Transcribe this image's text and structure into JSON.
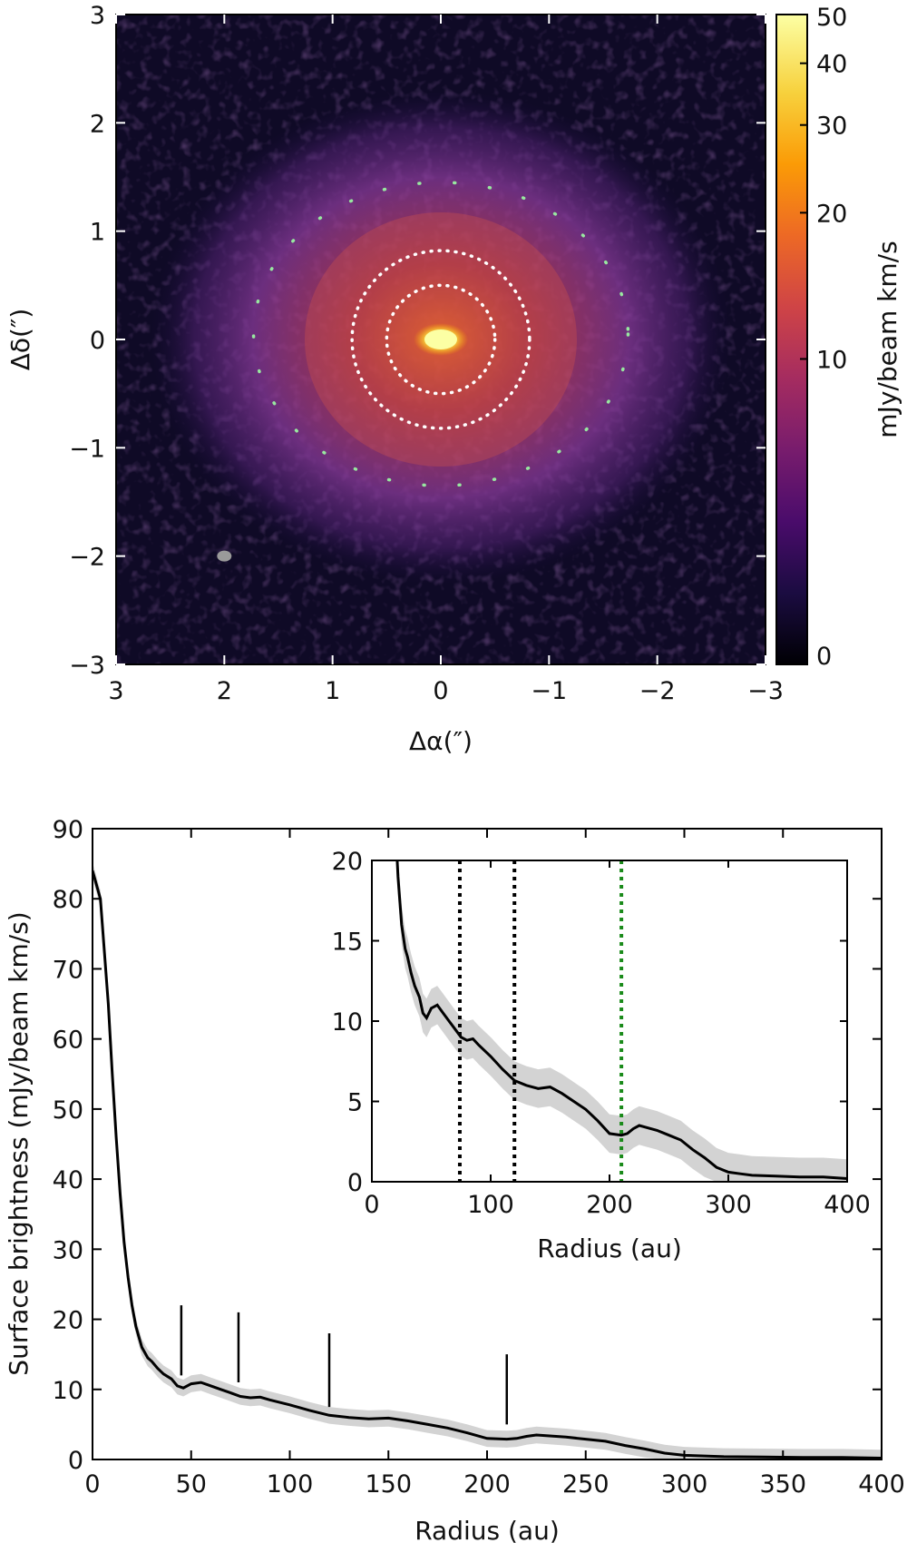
{
  "chart_data": [
    {
      "type": "heatmap",
      "xlabel": "Δα(″)",
      "ylabel": "Δδ(″)",
      "xlim": [
        3,
        -3
      ],
      "ylim": [
        -3,
        3
      ],
      "xticks": [
        "3",
        "2",
        "1",
        "0",
        "−1",
        "−2",
        "−3"
      ],
      "yticks": [
        "−3",
        "−2",
        "−1",
        "0",
        "1",
        "2",
        "3"
      ],
      "colorbar": {
        "label": "mJy/beam km/s",
        "range": [
          0,
          50
        ],
        "ticks": [
          "0",
          "10",
          "20",
          "30",
          "40",
          "50"
        ],
        "colormap": [
          "#000004",
          "#1b0c41",
          "#4a0c6b",
          "#781c6d",
          "#a52c60",
          "#cf4446",
          "#ed6925",
          "#fb9b06",
          "#f7d13d",
          "#fcffa4"
        ]
      },
      "features": {
        "central_peak": {
          "x": 0.0,
          "y": 0.0
        },
        "white_dotted_ellipses": [
          {
            "ra_semi": 0.5,
            "dec_semi": 0.5,
            "center_x": 0.0,
            "center_y": 0.0
          },
          {
            "ra_semi": 0.82,
            "dec_semi": 0.82,
            "center_x": 0.0,
            "center_y": 0.0
          }
        ],
        "green_dotted_ellipse": {
          "ra_semi": 1.73,
          "dec_semi": 1.4,
          "center_x": 0.0,
          "center_y": 0.05
        },
        "beam": {
          "x": 2.0,
          "y": -2.0
        }
      }
    },
    {
      "type": "line",
      "xlabel": "Radius (au)",
      "ylabel": "Surface brightness (mJy/beam km/s)",
      "xlim": [
        0,
        400
      ],
      "ylim": [
        0,
        90
      ],
      "xticks": [
        "0",
        "50",
        "100",
        "150",
        "200",
        "250",
        "300",
        "350",
        "400"
      ],
      "yticks": [
        "0",
        "10",
        "20",
        "30",
        "40",
        "50",
        "60",
        "70",
        "80",
        "90"
      ],
      "series": [
        {
          "x": [
            0,
            4,
            8,
            10,
            12,
            14,
            16,
            18,
            20,
            22,
            25,
            28,
            30,
            33,
            36,
            40,
            43,
            46,
            50,
            55,
            60,
            65,
            70,
            75,
            80,
            85,
            90,
            100,
            110,
            120,
            130,
            140,
            150,
            160,
            170,
            180,
            190,
            200,
            210,
            215,
            220,
            225,
            230,
            240,
            250,
            260,
            270,
            280,
            290,
            300,
            310,
            320,
            340,
            360,
            380,
            400
          ],
          "y": [
            84,
            80,
            65,
            55,
            46,
            38,
            31,
            26,
            22,
            19,
            16,
            14.5,
            14,
            13,
            12.2,
            11.5,
            10.5,
            10.2,
            10.8,
            11,
            10.5,
            10,
            9.5,
            9,
            8.8,
            8.9,
            8.5,
            7.8,
            7,
            6.3,
            6,
            5.8,
            5.9,
            5.5,
            5,
            4.5,
            3.8,
            3,
            2.9,
            3,
            3.3,
            3.5,
            3.4,
            3.2,
            2.9,
            2.6,
            2,
            1.5,
            0.9,
            0.6,
            0.5,
            0.4,
            0.35,
            0.3,
            0.3,
            0.2
          ],
          "uncertainty": 1.2,
          "color": "#000000",
          "band_color": "#d3d3d3"
        }
      ],
      "markers": [
        {
          "x": 45,
          "y_from": 12,
          "y_to": 22
        },
        {
          "x": 74,
          "y_from": 11,
          "y_to": 21
        },
        {
          "x": 120,
          "y_from": 7.5,
          "y_to": 18
        },
        {
          "x": 210,
          "y_from": 5,
          "y_to": 15
        }
      ],
      "inset": {
        "xlabel": "Radius (au)",
        "ylabel": "",
        "xlim": [
          0,
          400
        ],
        "ylim": [
          0,
          20
        ],
        "xticks": [
          "0",
          "100",
          "200",
          "300",
          "400"
        ],
        "yticks": [
          "0",
          "5",
          "10",
          "15",
          "20"
        ],
        "vlines": [
          {
            "x": 74,
            "color": "#000000"
          },
          {
            "x": 120,
            "color": "#000000"
          },
          {
            "x": 210,
            "color": "#1a8a1a"
          }
        ]
      }
    }
  ]
}
